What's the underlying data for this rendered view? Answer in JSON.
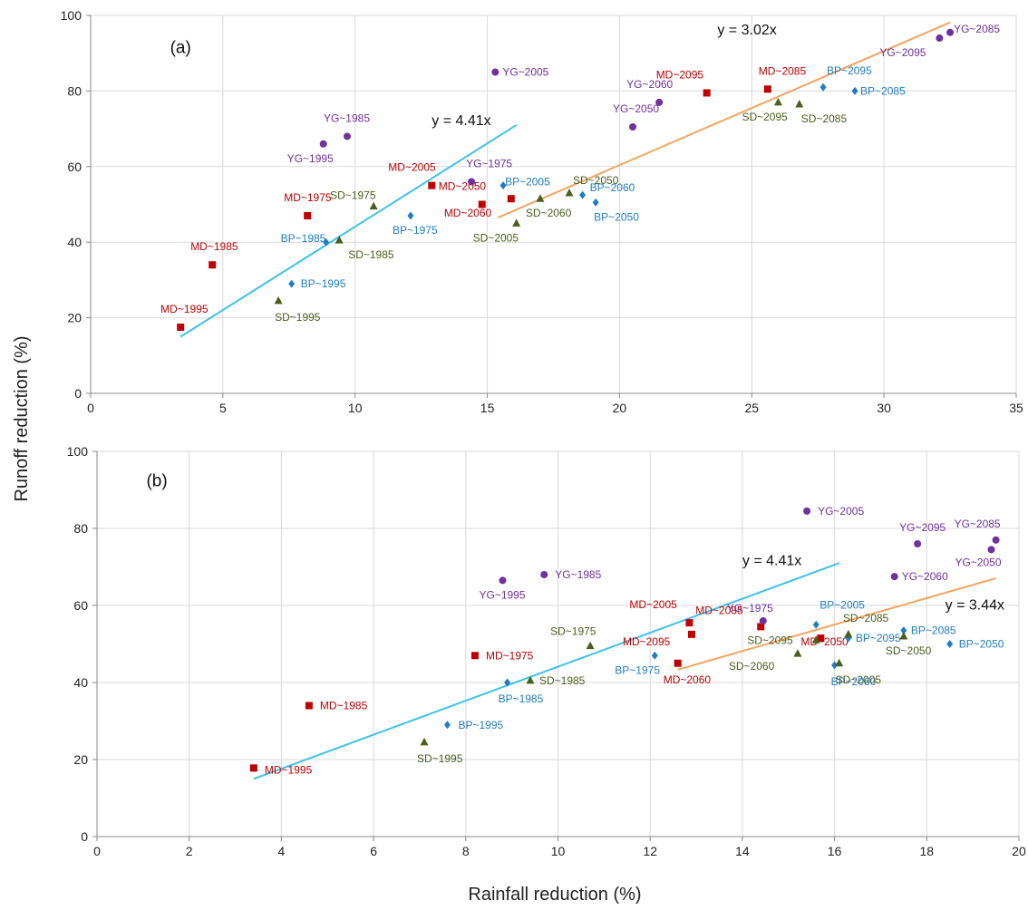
{
  "figure": {
    "ylabel": "Runoff reduction (%)",
    "xlabel": "Rainfall reduction (%)"
  },
  "colors": {
    "MD": "#c00000",
    "BP": "#1f7dc6",
    "SD": "#4a5f1c",
    "YG": "#7030a0",
    "fit_steep": "#3ec1ea",
    "fit_shallow": "#f4a460",
    "grid": "#d9d9d9"
  },
  "chart_data": [
    {
      "type": "scatter",
      "panel_label": "(a)",
      "xlim": [
        0,
        35
      ],
      "ylim": [
        0,
        100
      ],
      "xticks": [
        0,
        5,
        10,
        15,
        20,
        25,
        30,
        35
      ],
      "yticks": [
        0,
        20,
        40,
        60,
        80,
        100
      ],
      "grid": true,
      "series": [
        {
          "group": "MD",
          "marker": "square",
          "points": [
            {
              "x": 3.4,
              "y": 17.5,
              "label": "MD~1995"
            },
            {
              "x": 4.6,
              "y": 34,
              "label": "MD~1985"
            },
            {
              "x": 8.2,
              "y": 47,
              "label": "MD~1975"
            },
            {
              "x": 12.9,
              "y": 55,
              "label": "MD~2005"
            },
            {
              "x": 14.8,
              "y": 50,
              "label": "MD~2050"
            },
            {
              "x": 15.9,
              "y": 51.5,
              "label": "MD~2060"
            },
            {
              "x": 23.3,
              "y": 79.5,
              "label": "MD~2095"
            },
            {
              "x": 25.6,
              "y": 80.5,
              "label": "MD~2085"
            }
          ]
        },
        {
          "group": "BP",
          "marker": "diamond",
          "points": [
            {
              "x": 7.6,
              "y": 29,
              "label": "BP~1995"
            },
            {
              "x": 8.9,
              "y": 40,
              "label": "BP~1985"
            },
            {
              "x": 12.1,
              "y": 47,
              "label": "BP~1975"
            },
            {
              "x": 15.6,
              "y": 55,
              "label": "BP~2005"
            },
            {
              "x": 18.6,
              "y": 52.5,
              "label": "BP~2060"
            },
            {
              "x": 19.1,
              "y": 50.5,
              "label": "BP~2050"
            },
            {
              "x": 27.7,
              "y": 81,
              "label": "BP~2095"
            },
            {
              "x": 28.9,
              "y": 80,
              "label": "BP~2085"
            }
          ]
        },
        {
          "group": "SD",
          "marker": "triangle",
          "points": [
            {
              "x": 7.1,
              "y": 24.5,
              "label": "SD~1995"
            },
            {
              "x": 9.4,
              "y": 40.5,
              "label": "SD~1985"
            },
            {
              "x": 10.7,
              "y": 49.5,
              "label": "SD~1975"
            },
            {
              "x": 16.1,
              "y": 45,
              "label": "SD~2005"
            },
            {
              "x": 17,
              "y": 51.5,
              "label": "SD~2060"
            },
            {
              "x": 18.1,
              "y": 53,
              "label": "SD~2050"
            },
            {
              "x": 26,
              "y": 77,
              "label": "SD~2095"
            },
            {
              "x": 26.8,
              "y": 76.5,
              "label": "SD~2085"
            }
          ]
        },
        {
          "group": "YG",
          "marker": "circle",
          "points": [
            {
              "x": 8.8,
              "y": 66,
              "label": "YG~1995"
            },
            {
              "x": 9.7,
              "y": 68,
              "label": "YG~1985"
            },
            {
              "x": 14.4,
              "y": 56,
              "label": "YG~1975"
            },
            {
              "x": 15.3,
              "y": 85,
              "label": "YG~2005"
            },
            {
              "x": 20.5,
              "y": 70.5,
              "label": "YG~2050"
            },
            {
              "x": 21.5,
              "y": 77,
              "label": "YG~2060"
            },
            {
              "x": 32.1,
              "y": 94,
              "label": "YG~2095"
            },
            {
              "x": 32.5,
              "y": 95.5,
              "label": "YG~2085"
            }
          ]
        }
      ],
      "fit_lines": [
        {
          "equation": "y = 4.41x",
          "slope": 4.41,
          "x_range": [
            3.4,
            16.1
          ],
          "color_key": "fit_steep"
        },
        {
          "equation": "y = 3.02x",
          "slope": 3.02,
          "x_range": [
            15.4,
            32.5
          ],
          "color_key": "fit_shallow"
        }
      ]
    },
    {
      "type": "scatter",
      "panel_label": "(b)",
      "xlim": [
        0,
        20
      ],
      "ylim": [
        0,
        100
      ],
      "xticks": [
        0,
        2,
        4,
        6,
        8,
        10,
        12,
        14,
        16,
        18,
        20
      ],
      "yticks": [
        0,
        20,
        40,
        60,
        80,
        100
      ],
      "grid": true,
      "series": [
        {
          "group": "MD",
          "marker": "square",
          "points": [
            {
              "x": 3.4,
              "y": 17.8,
              "label": "MD~1995"
            },
            {
              "x": 4.6,
              "y": 34,
              "label": "MD~1985"
            },
            {
              "x": 8.2,
              "y": 47,
              "label": "MD~1975"
            },
            {
              "x": 12.6,
              "y": 45,
              "label": "MD~2060"
            },
            {
              "x": 12.85,
              "y": 55.5,
              "label": "MD~2005"
            },
            {
              "x": 12.9,
              "y": 52.5,
              "label": "MD~2095"
            },
            {
              "x": 14.4,
              "y": 54.5,
              "label": "MD~2085"
            },
            {
              "x": 15.7,
              "y": 51.5,
              "label": "MD~2050"
            }
          ]
        },
        {
          "group": "BP",
          "marker": "diamond",
          "points": [
            {
              "x": 7.6,
              "y": 29,
              "label": "BP~1995"
            },
            {
              "x": 8.9,
              "y": 40,
              "label": "BP~1985"
            },
            {
              "x": 12.1,
              "y": 47,
              "label": "BP~1975"
            },
            {
              "x": 15.6,
              "y": 55,
              "label": "BP~2005"
            },
            {
              "x": 16,
              "y": 44.5,
              "label": "BP~2060"
            },
            {
              "x": 16.3,
              "y": 51.5,
              "label": "BP~2095"
            },
            {
              "x": 17.5,
              "y": 53.5,
              "label": "BP~2085"
            },
            {
              "x": 18.5,
              "y": 50,
              "label": "BP~2050"
            }
          ]
        },
        {
          "group": "SD",
          "marker": "triangle",
          "points": [
            {
              "x": 7.1,
              "y": 24.5,
              "label": "SD~1995"
            },
            {
              "x": 9.4,
              "y": 40.5,
              "label": "SD~1985"
            },
            {
              "x": 10.7,
              "y": 49.5,
              "label": "SD~1975"
            },
            {
              "x": 15.2,
              "y": 47.5,
              "label": "SD~2060"
            },
            {
              "x": 15.6,
              "y": 51,
              "label": "SD~2095"
            },
            {
              "x": 16.1,
              "y": 45,
              "label": "SD~2005"
            },
            {
              "x": 16.3,
              "y": 52.5,
              "label": "SD~2085"
            },
            {
              "x": 17.5,
              "y": 52,
              "label": "SD~2050"
            }
          ]
        },
        {
          "group": "YG",
          "marker": "circle",
          "points": [
            {
              "x": 8.8,
              "y": 66.5,
              "label": "YG~1995"
            },
            {
              "x": 9.7,
              "y": 68,
              "label": "YG~1985"
            },
            {
              "x": 14.45,
              "y": 56,
              "label": "YG~1975"
            },
            {
              "x": 15.4,
              "y": 84.5,
              "label": "YG~2005"
            },
            {
              "x": 17.3,
              "y": 67.5,
              "label": "YG~2060"
            },
            {
              "x": 17.8,
              "y": 76,
              "label": "YG~2095"
            },
            {
              "x": 19.4,
              "y": 74.5,
              "label": "YG~2050"
            },
            {
              "x": 19.5,
              "y": 77,
              "label": "YG~2085"
            }
          ]
        }
      ],
      "fit_lines": [
        {
          "equation": "y = 4.41x",
          "slope": 4.41,
          "x_range": [
            3.4,
            16.1
          ],
          "color_key": "fit_steep"
        },
        {
          "equation": "y = 3.44x",
          "slope": 3.44,
          "x_range": [
            12.6,
            19.5
          ],
          "color_key": "fit_shallow"
        }
      ]
    }
  ]
}
